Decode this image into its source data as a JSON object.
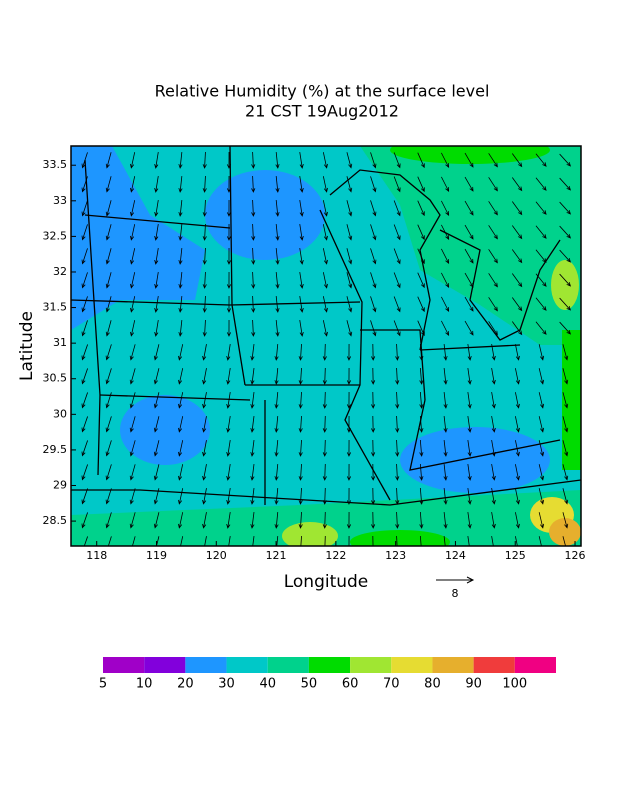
{
  "chart_data": {
    "type": "contour-map",
    "title": "Relative Humidity (%) at the surface level",
    "subtitle": "21 CST 19Aug2012",
    "x_label": "Longitude",
    "y_label": "Latitude",
    "xlim": [
      117.57,
      126.1
    ],
    "ylim": [
      28.15,
      33.77
    ],
    "xticks": [
      118,
      119,
      120,
      121,
      122,
      123,
      124,
      125,
      126
    ],
    "yticks": [
      28.5,
      29,
      29.5,
      30,
      30.5,
      31,
      31.5,
      32,
      32.5,
      33,
      33.5
    ],
    "reference_vector": 8,
    "colorbar": {
      "levels": [
        5,
        10,
        20,
        30,
        40,
        50,
        60,
        70,
        80,
        90,
        100
      ],
      "colors": [
        "#a000c8",
        "#8200dc",
        "#1e96ff",
        "#00c8c8",
        "#00d28c",
        "#00dc00",
        "#a0e632",
        "#e6dc32",
        "#e6af2d",
        "#f03c3c",
        "#f00082"
      ]
    }
  }
}
